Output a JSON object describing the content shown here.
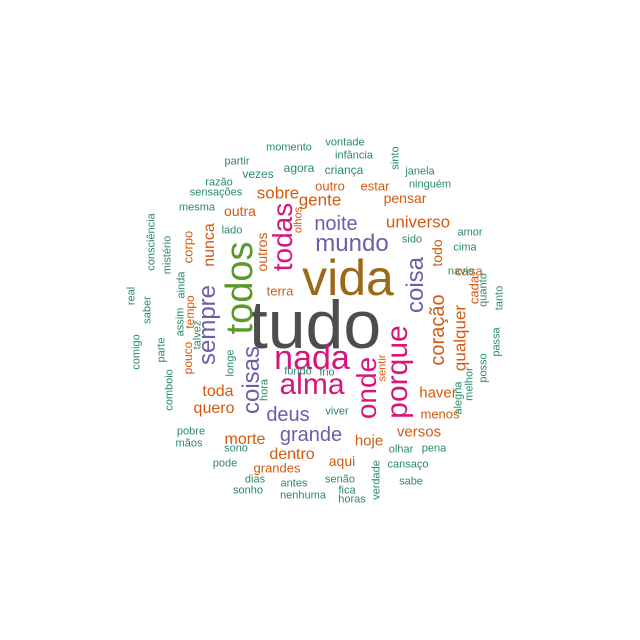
{
  "colors": {
    "dark": "#4d4d4d",
    "brown": "#9a6a1a",
    "green": "#5b9a2a",
    "purple": "#6a5fa8",
    "magenta": "#d6177a",
    "orange": "#d35a10",
    "teal": "#2a8a6a"
  },
  "words": [
    {
      "text": "tudo",
      "color": "dark"
    },
    {
      "text": "vida",
      "color": "brown"
    },
    {
      "text": "todos",
      "color": "green"
    },
    {
      "text": "nada",
      "color": "magenta"
    },
    {
      "text": "alma",
      "color": "magenta"
    },
    {
      "text": "porque",
      "color": "magenta"
    },
    {
      "text": "onde",
      "color": "magenta"
    },
    {
      "text": "todas",
      "color": "magenta"
    },
    {
      "text": "coisas",
      "color": "purple"
    },
    {
      "text": "sempre",
      "color": "purple"
    },
    {
      "text": "coisa",
      "color": "purple"
    },
    {
      "text": "mundo",
      "color": "purple"
    },
    {
      "text": "noite",
      "color": "purple"
    },
    {
      "text": "deus",
      "color": "purple"
    },
    {
      "text": "grande",
      "color": "purple"
    },
    {
      "text": "coração",
      "color": "orange"
    },
    {
      "text": "qualquer",
      "color": "orange"
    },
    {
      "text": "gente",
      "color": "orange"
    },
    {
      "text": "sobre",
      "color": "orange"
    },
    {
      "text": "universo",
      "color": "orange"
    },
    {
      "text": "nunca",
      "color": "orange"
    },
    {
      "text": "toda",
      "color": "orange"
    },
    {
      "text": "quero",
      "color": "orange"
    },
    {
      "text": "morte",
      "color": "orange"
    },
    {
      "text": "dentro",
      "color": "orange"
    },
    {
      "text": "haver",
      "color": "orange"
    },
    {
      "text": "versos",
      "color": "orange"
    },
    {
      "text": "hoje",
      "color": "orange"
    },
    {
      "text": "aqui",
      "color": "orange"
    },
    {
      "text": "todo",
      "color": "orange"
    },
    {
      "text": "pensar",
      "color": "orange"
    },
    {
      "text": "outros",
      "color": "orange"
    },
    {
      "text": "outra",
      "color": "orange"
    },
    {
      "text": "outro",
      "color": "orange"
    },
    {
      "text": "estar",
      "color": "orange"
    },
    {
      "text": "casa",
      "color": "orange"
    },
    {
      "text": "menos",
      "color": "orange"
    },
    {
      "text": "grandes",
      "color": "orange"
    },
    {
      "text": "cada",
      "color": "orange"
    },
    {
      "text": "corpo",
      "color": "orange"
    },
    {
      "text": "terra",
      "color": "orange"
    },
    {
      "text": "tempo",
      "color": "orange"
    },
    {
      "text": "pouco",
      "color": "orange"
    },
    {
      "text": "sentir",
      "color": "orange"
    },
    {
      "text": "olhos",
      "color": "orange"
    },
    {
      "text": "lado",
      "color": "teal"
    },
    {
      "text": "sido",
      "color": "teal"
    },
    {
      "text": "agora",
      "color": "teal"
    },
    {
      "text": "vezes",
      "color": "teal"
    },
    {
      "text": "criança",
      "color": "teal"
    },
    {
      "text": "mesma",
      "color": "teal"
    },
    {
      "text": "sensações",
      "color": "teal"
    },
    {
      "text": "razão",
      "color": "teal"
    },
    {
      "text": "partir",
      "color": "teal"
    },
    {
      "text": "momento",
      "color": "teal"
    },
    {
      "text": "vontade",
      "color": "teal"
    },
    {
      "text": "infância",
      "color": "teal"
    },
    {
      "text": "sinto",
      "color": "teal"
    },
    {
      "text": "janela",
      "color": "teal"
    },
    {
      "text": "ninguém",
      "color": "teal"
    },
    {
      "text": "amor",
      "color": "teal"
    },
    {
      "text": "cima",
      "color": "teal"
    },
    {
      "text": "navio",
      "color": "teal"
    },
    {
      "text": "quanto",
      "color": "teal"
    },
    {
      "text": "tanto",
      "color": "teal"
    },
    {
      "text": "melhor",
      "color": "teal"
    },
    {
      "text": "posso",
      "color": "teal"
    },
    {
      "text": "passa",
      "color": "teal"
    },
    {
      "text": "alegria",
      "color": "teal"
    },
    {
      "text": "pena",
      "color": "teal"
    },
    {
      "text": "olhar",
      "color": "teal"
    },
    {
      "text": "cansaço",
      "color": "teal"
    },
    {
      "text": "sabe",
      "color": "teal"
    },
    {
      "text": "verdade",
      "color": "teal"
    },
    {
      "text": "horas",
      "color": "teal"
    },
    {
      "text": "fica",
      "color": "teal"
    },
    {
      "text": "senão",
      "color": "teal"
    },
    {
      "text": "antes",
      "color": "teal"
    },
    {
      "text": "nenhuma",
      "color": "teal"
    },
    {
      "text": "dias",
      "color": "teal"
    },
    {
      "text": "sonho",
      "color": "teal"
    },
    {
      "text": "pode",
      "color": "teal"
    },
    {
      "text": "sono",
      "color": "teal"
    },
    {
      "text": "mãos",
      "color": "teal"
    },
    {
      "text": "pobre",
      "color": "teal"
    },
    {
      "text": "comboio",
      "color": "teal"
    },
    {
      "text": "comigo",
      "color": "teal"
    },
    {
      "text": "parte",
      "color": "teal"
    },
    {
      "text": "saber",
      "color": "teal"
    },
    {
      "text": "real",
      "color": "teal"
    },
    {
      "text": "consciência",
      "color": "teal"
    },
    {
      "text": "mistério",
      "color": "teal"
    },
    {
      "text": "assim",
      "color": "teal"
    },
    {
      "text": "ainda",
      "color": "teal"
    },
    {
      "text": "talvez",
      "color": "teal"
    },
    {
      "text": "longe",
      "color": "teal"
    },
    {
      "text": "hora",
      "color": "teal"
    },
    {
      "text": "fundo",
      "color": "teal"
    },
    {
      "text": "frio",
      "color": "teal"
    },
    {
      "text": "viver",
      "color": "teal"
    }
  ]
}
